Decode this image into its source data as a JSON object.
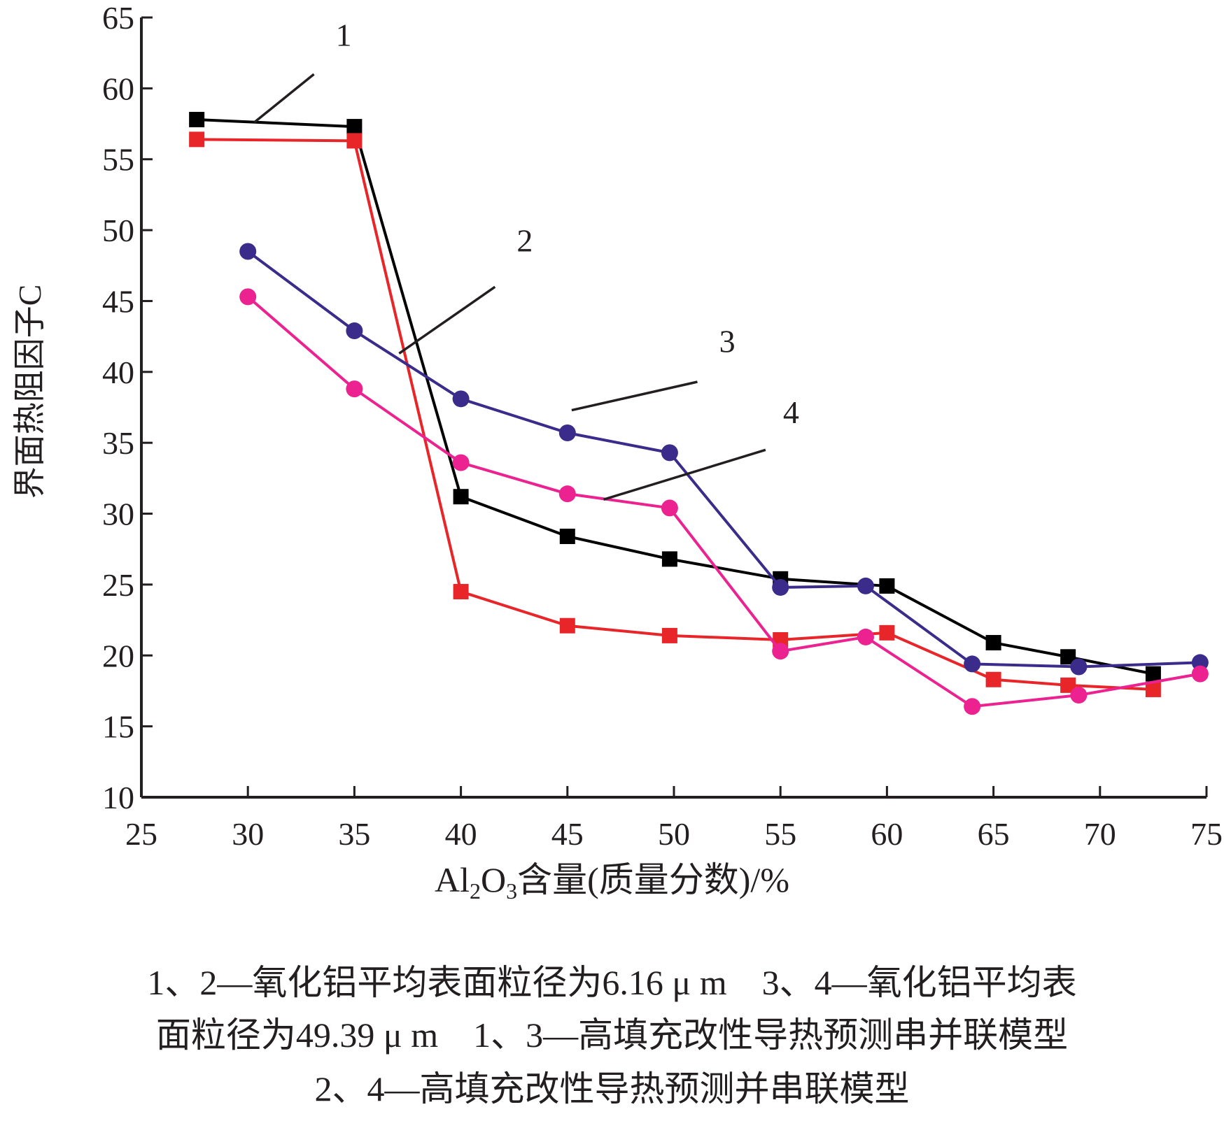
{
  "chart_data": {
    "type": "line",
    "x_ticks": [
      25,
      30,
      35,
      40,
      45,
      50,
      55,
      60,
      65,
      70,
      75
    ],
    "y_ticks": [
      10,
      15,
      20,
      25,
      30,
      35,
      40,
      45,
      50,
      55,
      60,
      65
    ],
    "xlim": [
      25,
      75
    ],
    "ylim": [
      10,
      65
    ],
    "ylabel": "界面热阻因子C",
    "xlabel": {
      "pre": "Al",
      "sub1": "2",
      "mid": "O",
      "sub2": "3",
      "post": "含量(质量分数)/%"
    },
    "series": [
      {
        "name": "1",
        "color": "#000000",
        "marker": "square",
        "x": [
          27.6,
          35,
          40,
          45,
          49.8,
          55,
          60,
          65,
          68.5,
          72.5
        ],
        "y": [
          57.8,
          57.3,
          31.2,
          28.4,
          26.8,
          25.4,
          24.9,
          20.9,
          19.9,
          18.7
        ]
      },
      {
        "name": "2",
        "color": "#e8262a",
        "marker": "square",
        "x": [
          27.6,
          35,
          40,
          45,
          49.8,
          55,
          60,
          65,
          68.5,
          72.5
        ],
        "y": [
          56.4,
          56.3,
          24.5,
          22.1,
          21.4,
          21.1,
          21.6,
          18.3,
          17.9,
          17.6
        ]
      },
      {
        "name": "3",
        "color": "#3b2b8a",
        "marker": "circle",
        "x": [
          30,
          35,
          40,
          45,
          49.8,
          55,
          59,
          64,
          69,
          74.7
        ],
        "y": [
          48.5,
          42.9,
          38.1,
          35.7,
          34.3,
          24.8,
          24.9,
          19.4,
          19.2,
          19.5
        ]
      },
      {
        "name": "4",
        "color": "#ec2290",
        "marker": "circle",
        "x": [
          30,
          35,
          40,
          45,
          49.8,
          55,
          59,
          64,
          69,
          74.7
        ],
        "y": [
          45.3,
          38.8,
          33.6,
          31.4,
          30.4,
          20.3,
          21.3,
          16.4,
          17.2,
          18.7
        ]
      }
    ],
    "annotations": [
      {
        "text": "1",
        "x": 34.5,
        "y": 63.0,
        "leader_from": [
          33.1,
          61.0
        ],
        "leader_to": [
          30.3,
          57.6
        ]
      },
      {
        "text": "2",
        "x": 43.0,
        "y": 48.5,
        "leader_from": [
          41.6,
          46.0
        ],
        "leader_to": [
          37.1,
          41.3
        ]
      },
      {
        "text": "3",
        "x": 52.5,
        "y": 41.4,
        "leader_from": [
          51.1,
          39.3
        ],
        "leader_to": [
          45.2,
          37.3
        ]
      },
      {
        "text": "4",
        "x": 55.5,
        "y": 36.4,
        "leader_from": [
          54.3,
          34.5
        ],
        "leader_to": [
          46.7,
          31.0
        ]
      }
    ]
  },
  "caption_lines": [
    "1、2—氧化铝平均表面粒径为6.16 μ m　3、4—氧化铝平均表",
    "面粒径为49.39 μ m　1、3—高填充改性导热预测串并联模型",
    "2、4—高填充改性导热预测并串联模型"
  ]
}
